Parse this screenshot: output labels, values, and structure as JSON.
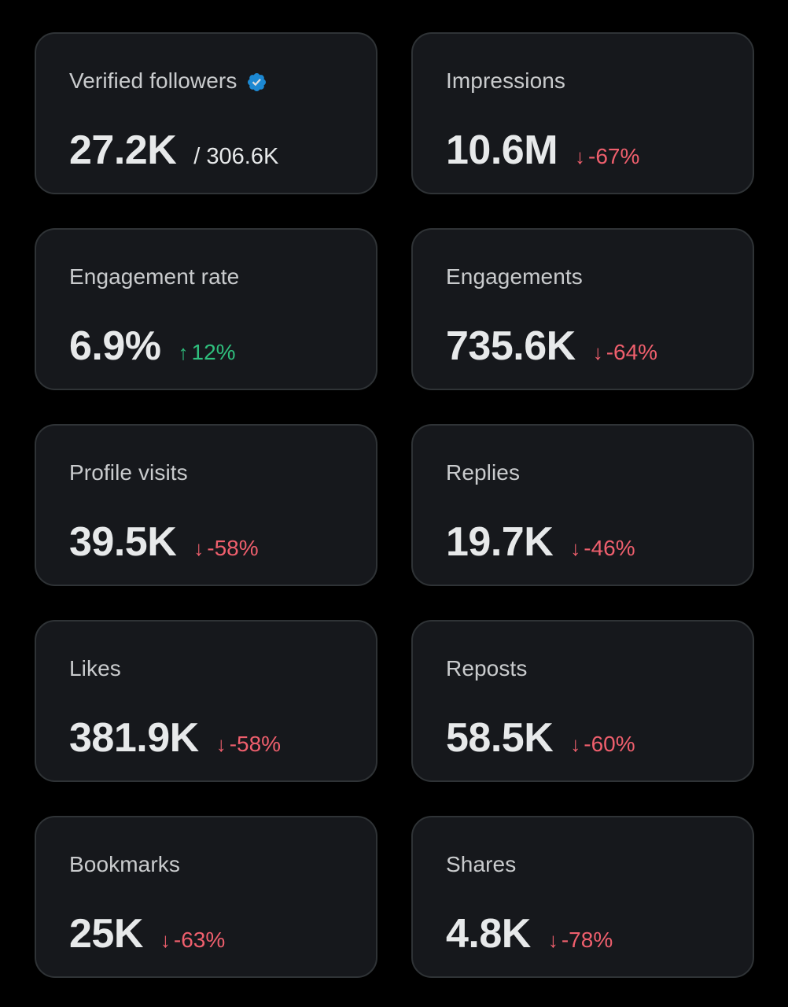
{
  "colors": {
    "background": "#000000",
    "card": "#16181c",
    "text": "#e7e9ea",
    "down": "#ef5f6d",
    "up": "#2fbf7d",
    "verified": "#1d9bf0"
  },
  "metrics": [
    {
      "label": "Verified followers",
      "value": "27.2K",
      "total": "/ 306.6K",
      "icon": "verified-badge-icon"
    },
    {
      "label": "Impressions",
      "value": "10.6M",
      "change": "-67%",
      "direction": "down",
      "arrow": "↓"
    },
    {
      "label": "Engagement rate",
      "value": "6.9%",
      "change": "12%",
      "direction": "up",
      "arrow": "↑"
    },
    {
      "label": "Engagements",
      "value": "735.6K",
      "change": "-64%",
      "direction": "down",
      "arrow": "↓"
    },
    {
      "label": "Profile visits",
      "value": "39.5K",
      "change": "-58%",
      "direction": "down",
      "arrow": "↓"
    },
    {
      "label": "Replies",
      "value": "19.7K",
      "change": "-46%",
      "direction": "down",
      "arrow": "↓"
    },
    {
      "label": "Likes",
      "value": "381.9K",
      "change": "-58%",
      "direction": "down",
      "arrow": "↓"
    },
    {
      "label": "Reposts",
      "value": "58.5K",
      "change": "-60%",
      "direction": "down",
      "arrow": "↓"
    },
    {
      "label": "Bookmarks",
      "value": "25K",
      "change": "-63%",
      "direction": "down",
      "arrow": "↓"
    },
    {
      "label": "Shares",
      "value": "4.8K",
      "change": "-78%",
      "direction": "down",
      "arrow": "↓"
    }
  ]
}
